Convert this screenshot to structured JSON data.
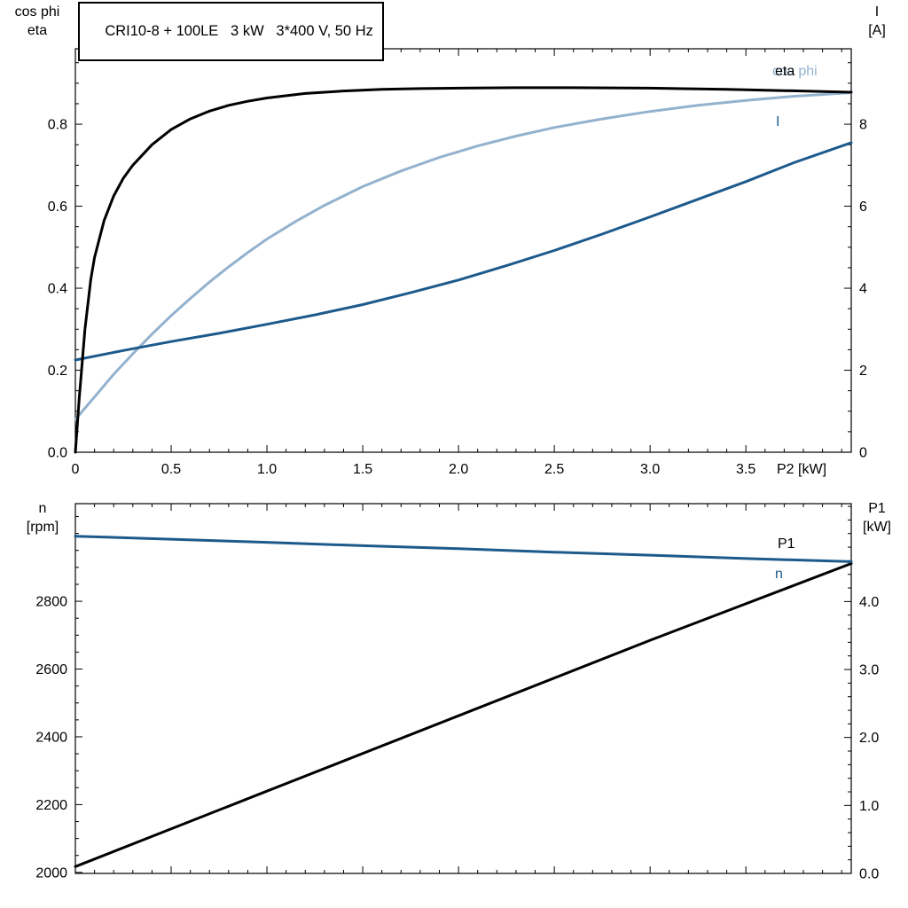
{
  "header": {
    "title": "CRI10-8 + 100LE   3 kW   3*400 V, 50 Hz"
  },
  "colors": {
    "frame": "#000000",
    "eta": "#000000",
    "cos_phi": "#93b2ce",
    "current": "#1d5a8c",
    "p1": "#000000",
    "n": "#1d5a8c"
  },
  "axis_corner_labels": {
    "top_left": [
      "cos phi",
      "eta"
    ],
    "top_right": [
      "I",
      "[A]"
    ],
    "bottom_left": [
      "n",
      "[rpm]"
    ],
    "bottom_right": [
      "P1",
      "[kW]"
    ]
  },
  "chart_data": [
    {
      "type": "line",
      "name": "upper-chart",
      "x": {
        "label": "P2 [kW]",
        "min": 0,
        "max": 4.05,
        "minor": 0.1,
        "tick_values": [
          0,
          0.5,
          1.0,
          1.5,
          2.0,
          2.5,
          3.0,
          3.5
        ],
        "tick_labels": [
          "0",
          "0.5",
          "1.0",
          "1.5",
          "2.0",
          "2.5",
          "3.0",
          "3.5"
        ]
      },
      "left": {
        "min": 0,
        "max": 0.984,
        "minor": 0.05,
        "tick_values": [
          0,
          0.2,
          0.4,
          0.6,
          0.8
        ],
        "tick_labels": [
          "0.0",
          "0.2",
          "0.4",
          "0.6",
          "0.8"
        ]
      },
      "right": {
        "min": 0,
        "max": 9.84,
        "minor": 0.5,
        "tick_values": [
          0,
          2,
          4,
          6,
          8
        ],
        "tick_labels": [
          "0",
          "2",
          "4",
          "6",
          "8"
        ]
      },
      "series": [
        {
          "label": "cos phi",
          "axis": "left",
          "color_key": "cos_phi",
          "points": [
            [
              0,
              0.08
            ],
            [
              0.1,
              0.135
            ],
            [
              0.2,
              0.19
            ],
            [
              0.3,
              0.24
            ],
            [
              0.4,
              0.288
            ],
            [
              0.5,
              0.333
            ],
            [
              0.6,
              0.375
            ],
            [
              0.7,
              0.415
            ],
            [
              0.8,
              0.452
            ],
            [
              0.9,
              0.487
            ],
            [
              1.0,
              0.52
            ],
            [
              1.15,
              0.563
            ],
            [
              1.3,
              0.602
            ],
            [
              1.5,
              0.648
            ],
            [
              1.7,
              0.686
            ],
            [
              1.9,
              0.719
            ],
            [
              2.1,
              0.747
            ],
            [
              2.3,
              0.771
            ],
            [
              2.5,
              0.792
            ],
            [
              2.75,
              0.813
            ],
            [
              3.0,
              0.831
            ],
            [
              3.25,
              0.846
            ],
            [
              3.5,
              0.858
            ],
            [
              3.75,
              0.868
            ],
            [
              4.05,
              0.877
            ]
          ]
        },
        {
          "label": "I",
          "axis": "right",
          "color_key": "current",
          "points": [
            [
              0,
              2.25
            ],
            [
              0.25,
              2.48
            ],
            [
              0.5,
              2.7
            ],
            [
              0.75,
              2.9
            ],
            [
              1.0,
              3.12
            ],
            [
              1.25,
              3.35
            ],
            [
              1.5,
              3.6
            ],
            [
              1.75,
              3.89
            ],
            [
              2.0,
              4.2
            ],
            [
              2.25,
              4.55
            ],
            [
              2.5,
              4.92
            ],
            [
              2.75,
              5.32
            ],
            [
              3.0,
              5.74
            ],
            [
              3.25,
              6.17
            ],
            [
              3.5,
              6.6
            ],
            [
              3.75,
              7.06
            ],
            [
              4.05,
              7.55
            ]
          ]
        },
        {
          "label": "eta",
          "axis": "left",
          "color_key": "eta",
          "points": [
            [
              0,
              0
            ],
            [
              0.02,
              0.13
            ],
            [
              0.05,
              0.3
            ],
            [
              0.08,
              0.42
            ],
            [
              0.1,
              0.475
            ],
            [
              0.15,
              0.565
            ],
            [
              0.2,
              0.625
            ],
            [
              0.25,
              0.668
            ],
            [
              0.3,
              0.7
            ],
            [
              0.4,
              0.75
            ],
            [
              0.5,
              0.787
            ],
            [
              0.6,
              0.813
            ],
            [
              0.7,
              0.832
            ],
            [
              0.8,
              0.846
            ],
            [
              0.9,
              0.856
            ],
            [
              1.0,
              0.864
            ],
            [
              1.2,
              0.875
            ],
            [
              1.4,
              0.881
            ],
            [
              1.6,
              0.885
            ],
            [
              1.8,
              0.887
            ],
            [
              2.0,
              0.888
            ],
            [
              2.3,
              0.889
            ],
            [
              2.6,
              0.889
            ],
            [
              3.0,
              0.888
            ],
            [
              3.4,
              0.885
            ],
            [
              3.7,
              0.882
            ],
            [
              4.05,
              0.878
            ]
          ]
        }
      ]
    },
    {
      "type": "line",
      "name": "lower-chart",
      "x": {
        "label": "",
        "min": 0,
        "max": 4.05,
        "minor": 0.1,
        "tick_values": [
          0,
          0.5,
          1.0,
          1.5,
          2.0,
          2.5,
          3.0,
          3.5
        ],
        "tick_labels": []
      },
      "left": {
        "min": 1997,
        "max": 3088,
        "minor": 50,
        "tick_values": [
          2000,
          2200,
          2400,
          2600,
          2800
        ],
        "tick_labels": [
          "2000",
          "2200",
          "2400",
          "2600",
          "2800"
        ]
      },
      "right": {
        "min": 0,
        "max": 5.44,
        "minor": 0.2,
        "tick_values": [
          0,
          1,
          2,
          3,
          4
        ],
        "tick_labels": [
          "0.0",
          "1.0",
          "2.0",
          "3.0",
          "4.0"
        ]
      },
      "series": [
        {
          "label": "P1",
          "axis": "right",
          "color_key": "p1",
          "points": [
            [
              0,
              0.1
            ],
            [
              1.0,
              1.21
            ],
            [
              2.0,
              2.32
            ],
            [
              3.0,
              3.43
            ],
            [
              4.05,
              4.56
            ]
          ]
        },
        {
          "label": "n",
          "axis": "left",
          "color_key": "n",
          "points": [
            [
              0,
              2992
            ],
            [
              0.5,
              2983
            ],
            [
              1.0,
              2974
            ],
            [
              1.5,
              2964
            ],
            [
              2.0,
              2955
            ],
            [
              2.5,
              2945
            ],
            [
              3.0,
              2936
            ],
            [
              3.5,
              2926
            ],
            [
              4.05,
              2917
            ]
          ]
        }
      ]
    }
  ]
}
